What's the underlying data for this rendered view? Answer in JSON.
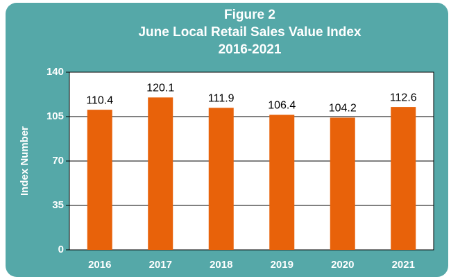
{
  "chart_data": {
    "type": "bar",
    "title_lines": [
      "Figure 2",
      "June Local Retail Sales Value Index",
      "2016-2021"
    ],
    "y_label": "Index Number",
    "categories": [
      "2016",
      "2017",
      "2018",
      "2019",
      "2020",
      "2021"
    ],
    "values": [
      110.4,
      120.1,
      111.9,
      106.4,
      104.2,
      112.6
    ],
    "color": "#e8620a",
    "ylim": [
      0,
      140
    ],
    "yticks": [
      0,
      35,
      70,
      105,
      140
    ],
    "grid": true
  }
}
